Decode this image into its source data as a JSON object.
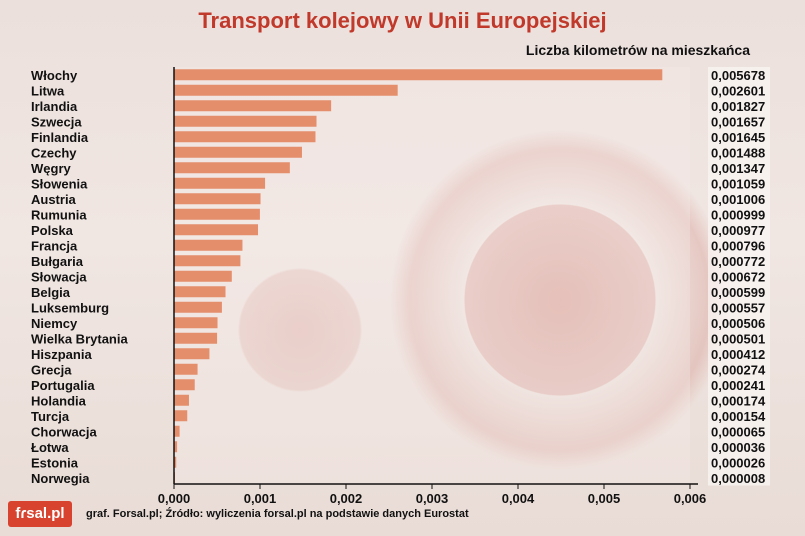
{
  "logo_text": "fɾsal.pl",
  "source": "graf. Forsal.pl; Źródło: wyliczenia forsal.pl na podstawie danych Eurostat",
  "chart_data": {
    "type": "bar",
    "orientation": "horizontal",
    "title": "Transport kolejowy w Unii Europejskiej",
    "subtitle": "Liczba kilometrów na mieszkańca",
    "xlim": [
      0,
      0.006
    ],
    "ticks": [
      "0,000",
      "0,001",
      "0,002",
      "0,003",
      "0,004",
      "0,005",
      "0,006"
    ],
    "tick_values": [
      0,
      0.001,
      0.002,
      0.003,
      0.004,
      0.005,
      0.006
    ],
    "bar_color": "#e58e6c",
    "categories": [
      "Włochy",
      "Litwa",
      "Irlandia",
      "Szwecja",
      "Finlandia",
      "Czechy",
      "Węgry",
      "Słowenia",
      "Austria",
      "Rumunia",
      "Polska",
      "Francja",
      "Bułgaria",
      "Słowacja",
      "Belgia",
      "Luksemburg",
      "Niemcy",
      "Wielka Brytania",
      "Hiszpania",
      "Grecja",
      "Portugalia",
      "Holandia",
      "Turcja",
      "Chorwacja",
      "Łotwa",
      "Estonia",
      "Norwegia"
    ],
    "values": [
      0.005678,
      0.002601,
      0.001827,
      0.001657,
      0.001645,
      0.001488,
      0.001347,
      0.001059,
      0.001006,
      0.000999,
      0.000977,
      0.000796,
      0.000772,
      0.000672,
      0.000599,
      0.000557,
      0.000506,
      0.000501,
      0.000412,
      0.000274,
      0.000241,
      0.000174,
      0.000154,
      6.5e-05,
      3.6e-05,
      2.6e-05,
      8e-06
    ],
    "value_labels": [
      "0,005678",
      "0,002601",
      "0,001827",
      "0,001657",
      "0,001645",
      "0,001488",
      "0,001347",
      "0,001059",
      "0,001006",
      "0,000999",
      "0,000977",
      "0,000796",
      "0,000772",
      "0,000672",
      "0,000599",
      "0,000557",
      "0,000506",
      "0,000501",
      "0,000412",
      "0,000274",
      "0,000241",
      "0,000174",
      "0,000154",
      "0,000065",
      "0,000036",
      "0,000026",
      "0,000008"
    ]
  }
}
